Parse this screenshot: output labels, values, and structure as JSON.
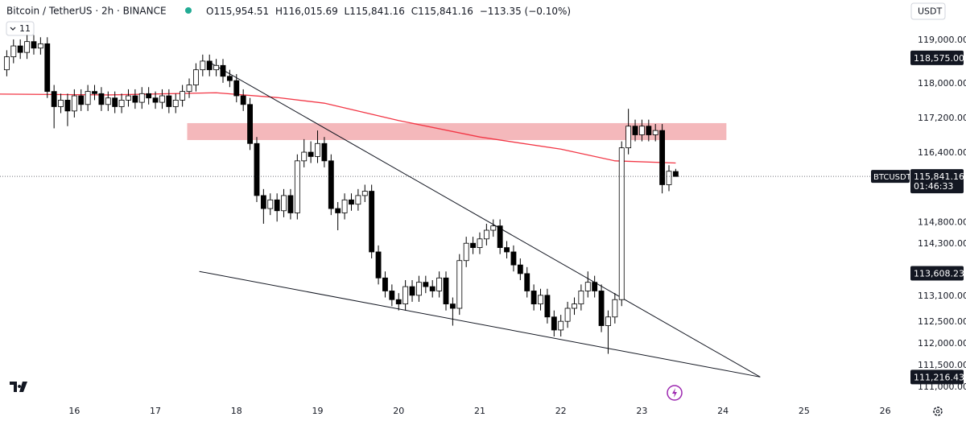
{
  "chart_data": {
    "type": "candlestick",
    "header": {
      "title": "Bitcoin / TetherUS · 2h · BINANCE",
      "open": "O115,954.51",
      "high": "H116,015.69",
      "low": "L115,841.16",
      "close": "C115,841.16",
      "change": "−113.35 (−0.10%)"
    },
    "currency": "USDT",
    "indicator_toggle": "11",
    "up_color": "#ffffff",
    "down_color": "#000000",
    "open": [
      118300,
      118600,
      118850,
      118700,
      118950,
      118800,
      118900,
      117800,
      117450,
      117600,
      117350,
      117700,
      117500,
      117800,
      117750,
      117500,
      117650,
      117450,
      117600,
      117700,
      117550,
      117750,
      117650,
      117550,
      117700,
      117450,
      117600,
      117800,
      117950,
      118300,
      118500,
      118300,
      118400,
      118150,
      118050,
      117700,
      117500,
      116600,
      115400,
      115100,
      115300,
      115050,
      115400,
      115000,
      116200,
      116400,
      116300,
      116600,
      116200,
      115100,
      115000,
      115300,
      115200,
      115400,
      115500,
      114100,
      113500,
      113200,
      113000,
      112900,
      113300,
      113100,
      113400,
      113300,
      113200,
      113500,
      112900,
      112800,
      113900,
      114300,
      114200,
      114400,
      114600,
      114700,
      114200,
      114100,
      113800,
      113600,
      113200,
      112900,
      113100,
      112600,
      112300,
      112500,
      112800,
      112900,
      113200,
      113400,
      113200,
      112400,
      112600,
      113000,
      116500,
      117000,
      116800,
      117000,
      116800,
      116900,
      115650,
      115954.51
    ],
    "high": [
      118750,
      119000,
      119000,
      119100,
      119100,
      119050,
      119050,
      117950,
      117750,
      117750,
      117850,
      117850,
      117950,
      117950,
      117900,
      117800,
      117800,
      117750,
      117850,
      117850,
      117900,
      117900,
      117800,
      117850,
      117850,
      117750,
      117950,
      118100,
      118450,
      118650,
      118650,
      118550,
      118550,
      118300,
      118200,
      117850,
      117650,
      116750,
      115550,
      115450,
      115450,
      115550,
      115550,
      116350,
      116700,
      116650,
      116900,
      116750,
      116350,
      115250,
      115450,
      115450,
      115550,
      115650,
      115650,
      114250,
      113650,
      113350,
      113150,
      113450,
      113450,
      113550,
      113550,
      113450,
      113650,
      113650,
      113050,
      114050,
      114450,
      114450,
      114550,
      114750,
      114850,
      114850,
      114350,
      114250,
      113950,
      113750,
      113350,
      113250,
      113250,
      112750,
      112650,
      112950,
      113050,
      113350,
      113650,
      113550,
      113350,
      112750,
      113150,
      116650,
      117400,
      117150,
      117150,
      117150,
      117050,
      117050,
      116100,
      116015.69
    ],
    "low": [
      118150,
      118450,
      118550,
      118550,
      118650,
      118650,
      117650,
      116950,
      117300,
      117000,
      117200,
      117350,
      117350,
      117600,
      117350,
      117350,
      117300,
      117300,
      117450,
      117400,
      117400,
      117500,
      117400,
      117400,
      117300,
      117300,
      117450,
      117650,
      117800,
      118150,
      118150,
      118150,
      118000,
      117900,
      117550,
      117350,
      116450,
      115250,
      114750,
      114950,
      114800,
      114900,
      114850,
      114850,
      116050,
      116150,
      116150,
      116050,
      114950,
      114600,
      114850,
      115050,
      115050,
      115250,
      113950,
      113350,
      113050,
      112850,
      112750,
      112750,
      112950,
      112950,
      113150,
      113050,
      113050,
      112750,
      112400,
      112650,
      113750,
      114050,
      114050,
      114250,
      114450,
      114050,
      113950,
      113650,
      113450,
      113050,
      112750,
      112750,
      112450,
      112150,
      112150,
      112350,
      112650,
      112750,
      113050,
      113050,
      112250,
      111750,
      112450,
      112850,
      116350,
      116650,
      116650,
      116650,
      116650,
      115450,
      115500,
      115841.16
    ],
    "close": [
      118600,
      118850,
      118700,
      118950,
      118800,
      118900,
      117800,
      117450,
      117600,
      117350,
      117700,
      117500,
      117800,
      117750,
      117500,
      117650,
      117450,
      117600,
      117700,
      117550,
      117750,
      117650,
      117550,
      117700,
      117450,
      117600,
      117800,
      117950,
      118300,
      118500,
      118300,
      118400,
      118150,
      118050,
      117700,
      117500,
      116600,
      115400,
      115100,
      115300,
      115050,
      115400,
      115000,
      116200,
      116400,
      116300,
      116600,
      116200,
      115100,
      115000,
      115300,
      115200,
      115400,
      115500,
      114100,
      113500,
      113200,
      113000,
      112900,
      113300,
      113100,
      113400,
      113300,
      113200,
      113500,
      112900,
      112800,
      113900,
      114300,
      114200,
      114400,
      114600,
      114700,
      114200,
      114100,
      113800,
      113600,
      113200,
      112900,
      113100,
      112600,
      112300,
      112500,
      112800,
      112900,
      113200,
      113400,
      113200,
      112400,
      112600,
      113000,
      116500,
      117000,
      116800,
      117000,
      116800,
      116900,
      115650,
      115960,
      115841.16
    ],
    "moving_average": {
      "color": "#f23645",
      "x": [
        -1,
        15,
        31,
        40,
        47,
        58,
        70,
        82,
        90,
        99
      ],
      "values": [
        117740,
        117720,
        117770,
        117660,
        117530,
        117130,
        116750,
        116470,
        116200,
        116150
      ]
    },
    "upper_trendline": {
      "color": "#131722",
      "x": [
        29.7,
        111.5
      ],
      "values": [
        118500,
        111216.43
      ]
    },
    "lower_trendline": {
      "color": "#131722",
      "x": [
        28.5,
        111.5
      ],
      "values": [
        113650,
        111216.43
      ]
    },
    "zone": {
      "color": "#f0a0a4",
      "x": [
        26.7,
        106.5
      ],
      "range": [
        116680,
        117070
      ]
    },
    "xlim": [
      -1,
      131
    ],
    "ylim": [
      110814,
      119909
    ],
    "xticks": [
      {
        "value": 10,
        "label": "16"
      },
      {
        "value": 22,
        "label": "17"
      },
      {
        "value": 34,
        "label": "18"
      },
      {
        "value": 46,
        "label": "19"
      },
      {
        "value": 58,
        "label": "20"
      },
      {
        "value": 70,
        "label": "21"
      },
      {
        "value": 82,
        "label": "22"
      },
      {
        "value": 94,
        "label": "23"
      },
      {
        "value": 106,
        "label": "24"
      },
      {
        "value": 118,
        "label": "25"
      },
      {
        "value": 130,
        "label": "26"
      }
    ],
    "yticks": [
      {
        "value": 111000,
        "label": "111,000.00"
      },
      {
        "value": 111500,
        "label": "111,500.00"
      },
      {
        "value": 112000,
        "label": "112,000.00"
      },
      {
        "value": 112500,
        "label": "112,500.00"
      },
      {
        "value": 113100,
        "label": "113,100.00"
      },
      {
        "value": 114300,
        "label": "114,300.00"
      },
      {
        "value": 114800,
        "label": "114,800.00"
      },
      {
        "value": 116400,
        "label": "116,400.00"
      },
      {
        "value": 117200,
        "label": "117,200.00"
      },
      {
        "value": 118000,
        "label": "118,000.00"
      },
      {
        "value": 119000,
        "label": "119,000.00"
      }
    ],
    "price_labels": [
      {
        "value": 118575,
        "label": "118,575.00"
      },
      {
        "value": 113608.23,
        "label": "113,608.23"
      },
      {
        "value": 111216.43,
        "label": "111,216.43"
      }
    ],
    "last_price": {
      "value": 115841.16,
      "label": "115,841.16",
      "countdown": "01:46:33",
      "symbol": "BTCUSDT"
    }
  }
}
